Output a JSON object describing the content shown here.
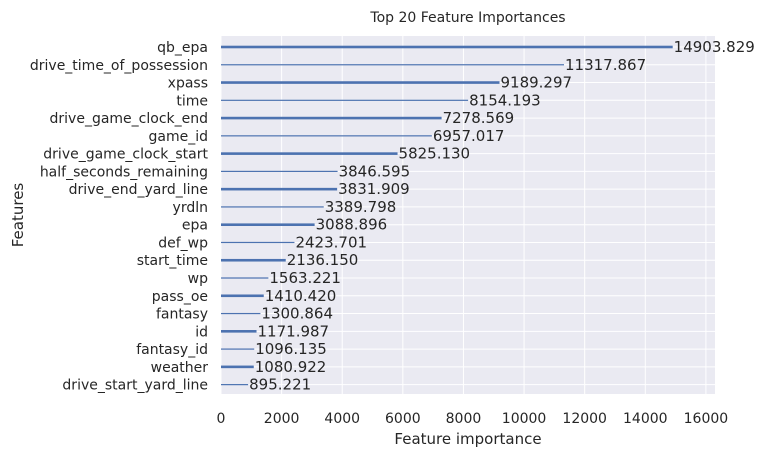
{
  "chart_data": {
    "type": "bar",
    "orientation": "horizontal",
    "title": "Top 20 Feature Importances",
    "xlabel": "Feature importance",
    "ylabel": "Features",
    "xlim": [
      0,
      16300
    ],
    "xticks": [
      0,
      2000,
      4000,
      6000,
      8000,
      10000,
      12000,
      14000,
      16000
    ],
    "grid": true,
    "legend": "none",
    "colors": {
      "bar": "#4c72b0",
      "background": "#eaeaf2",
      "grid": "#ffffff",
      "text": "#262626"
    },
    "categories": [
      "qb_epa",
      "drive_time_of_possession",
      "xpass",
      "time",
      "drive_game_clock_end",
      "game_id",
      "drive_game_clock_start",
      "half_seconds_remaining",
      "drive_end_yard_line",
      "yrdln",
      "epa",
      "def_wp",
      "start_time",
      "wp",
      "pass_oe",
      "fantasy",
      "id",
      "fantasy_id",
      "weather",
      "drive_start_yard_line"
    ],
    "values": [
      14903.829,
      11317.867,
      9189.297,
      8154.193,
      7278.569,
      6957.017,
      5825.13,
      3846.595,
      3831.909,
      3389.798,
      3088.896,
      2423.701,
      2136.15,
      1563.221,
      1410.42,
      1300.864,
      1171.987,
      1096.135,
      1080.922,
      895.221
    ],
    "value_labels": [
      "14903.829",
      "11317.867",
      "9189.297",
      "8154.193",
      "7278.569",
      "6957.017",
      "5825.130",
      "3846.595",
      "3831.909",
      "3389.798",
      "3088.896",
      "2423.701",
      "2136.150",
      "1563.221",
      "1410.420",
      "1300.864",
      "1171.987",
      "1096.135",
      "1080.922",
      "895.221"
    ]
  }
}
